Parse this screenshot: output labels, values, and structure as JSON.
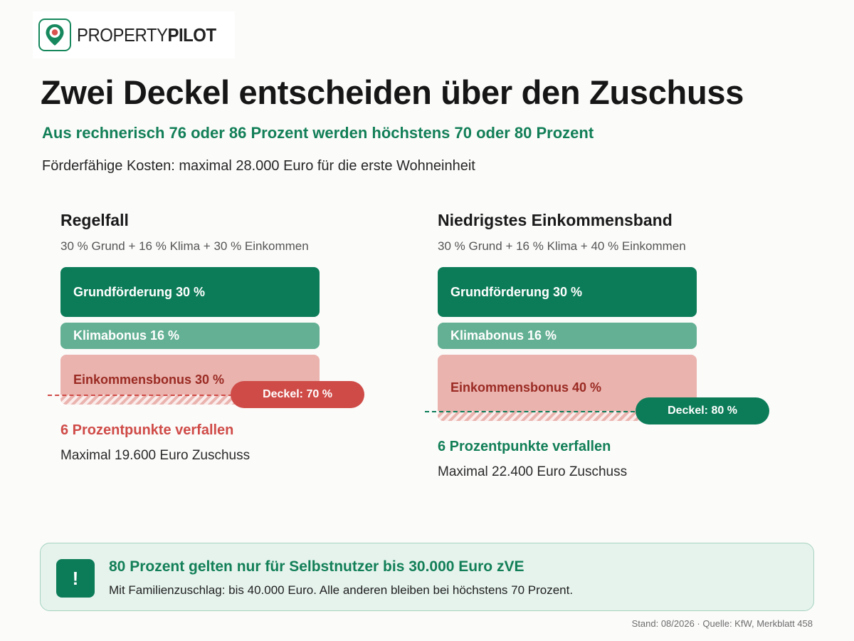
{
  "brand": {
    "word_regular": "PROPERTY",
    "word_bold": "PILOT"
  },
  "header": {
    "title": "Zwei Deckel entscheiden über den Zuschuss",
    "subtitle": "Aus rechnerisch 76 oder 86 Prozent werden höchstens 70 oder 80 Prozent",
    "cost_line": "Förderfähige Kosten: maximal 28.000 Euro für die erste Wohneinheit"
  },
  "colors": {
    "grund": "#0c7c58",
    "klima": "#63b094",
    "einkommen": "#eab3ae",
    "cap_red": "#cf4b47",
    "cap_green": "#0c7c58",
    "accent": "#127f57"
  },
  "chart_data": [
    {
      "type": "bar",
      "title": "Regelfall",
      "subtitle": "30 % Grund + 16 % Klima + 30 % Einkommen",
      "segments": [
        {
          "label": "Grundförderung 30 %",
          "value": 30
        },
        {
          "label": "Klimabonus 16 %",
          "value": 16
        },
        {
          "label": "Einkommensbonus 30 %",
          "value": 30
        }
      ],
      "total": 76,
      "cap": {
        "label": "Deckel: 70 %",
        "value": 70
      },
      "lost_label": "6 Prozentpunkte verfallen",
      "max_label": "Maximal 19.600 Euro Zuschuss"
    },
    {
      "type": "bar",
      "title": "Niedrigstes Einkommensband",
      "subtitle": "30 % Grund + 16 % Klima + 40 % Einkommen",
      "segments": [
        {
          "label": "Grundförderung 30 %",
          "value": 30
        },
        {
          "label": "Klimabonus 16 %",
          "value": 16
        },
        {
          "label": "Einkommensbonus 40 %",
          "value": 40
        }
      ],
      "total": 86,
      "cap": {
        "label": "Deckel: 80 %",
        "value": 80
      },
      "lost_label": "6 Prozentpunkte verfallen",
      "max_label": "Maximal 22.400 Euro Zuschuss"
    }
  ],
  "note": {
    "badge": "!",
    "headline": "80 Prozent gelten nur für Selbstnutzer bis 30.000 Euro zVE",
    "body": "Mit Familienzuschlag: bis 40.000 Euro. Alle anderen bleiben bei höchstens 70 Prozent."
  },
  "source": "Stand: 08/2026 · Quelle: KfW, Merkblatt 458"
}
